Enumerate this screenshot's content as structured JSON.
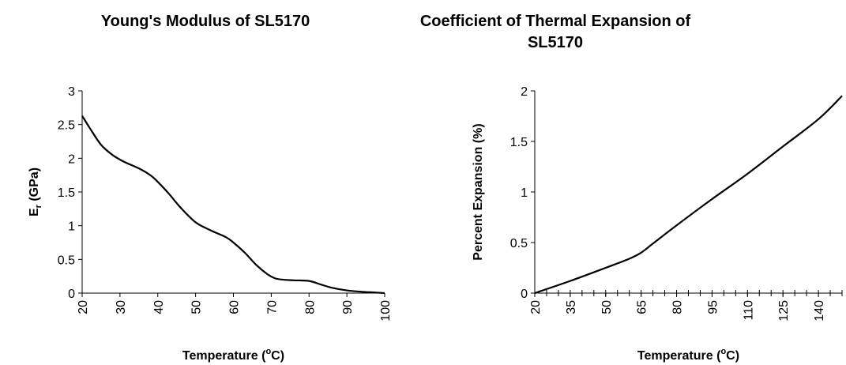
{
  "chart_data": [
    {
      "type": "line",
      "title": "Young's Modulus of SL5170",
      "xlabel_main": "Temperature (",
      "xlabel_sup": "o",
      "xlabel_end": "C)",
      "ylabel_main": "E",
      "ylabel_sub": "r",
      "ylabel_end": " (GPa)",
      "xlim": [
        20,
        100
      ],
      "ylim": [
        0,
        3
      ],
      "xticks": [
        "20",
        "30",
        "40",
        "50",
        "60",
        "70",
        "80",
        "90",
        "100"
      ],
      "yticks": [
        "0",
        "0.5",
        "1",
        "1.5",
        "2",
        "2.5",
        "3"
      ],
      "grid": false,
      "series": [
        {
          "x": [
            20,
            22,
            25,
            28,
            31,
            35,
            38,
            40,
            43,
            46,
            50,
            54,
            58,
            60,
            63,
            66,
            69,
            71,
            73,
            76,
            80,
            83,
            86,
            90,
            94,
            97,
            100
          ],
          "y": [
            2.63,
            2.45,
            2.2,
            2.05,
            1.95,
            1.85,
            1.75,
            1.65,
            1.47,
            1.27,
            1.05,
            0.93,
            0.83,
            0.75,
            0.6,
            0.42,
            0.28,
            0.22,
            0.2,
            0.19,
            0.18,
            0.13,
            0.08,
            0.04,
            0.02,
            0.01,
            0.0
          ],
          "color": "#000000"
        }
      ]
    },
    {
      "type": "line",
      "title": "Coefficient of Thermal Expansion of SL5170",
      "xlabel_main": "Temperature (",
      "xlabel_sup": "o",
      "xlabel_end": "C)",
      "ylabel_main": "Percent Expansion (%)",
      "xlim": [
        20,
        150
      ],
      "ylim": [
        0,
        2
      ],
      "xticks": [
        "20",
        "35",
        "50",
        "65",
        "80",
        "95",
        "110",
        "125",
        "140"
      ],
      "yticks": [
        "0",
        "0.5",
        "1",
        "1.5",
        "2"
      ],
      "grid": false,
      "series": [
        {
          "x": [
            20,
            35,
            50,
            60,
            65,
            70,
            80,
            95,
            110,
            125,
            140,
            150
          ],
          "y": [
            0.0,
            0.12,
            0.25,
            0.34,
            0.4,
            0.49,
            0.67,
            0.93,
            1.18,
            1.45,
            1.72,
            1.95
          ],
          "color": "#000000"
        }
      ]
    }
  ]
}
